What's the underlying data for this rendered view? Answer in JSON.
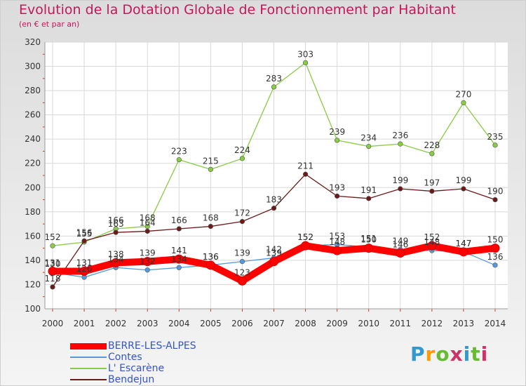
{
  "header": {
    "title": "Evolution de la Dotation Globale de Fonctionnement par Habitant",
    "subtitle": "(en € et par an)"
  },
  "logo": {
    "text": "Proxiti",
    "colors": [
      "#3399cc",
      "#ff9900",
      "#66bb33",
      "#cc3366",
      "#3399cc",
      "#66bb33",
      "#cc3366"
    ]
  },
  "chart_data": {
    "type": "line",
    "title": "Evolution de la Dotation Globale de Fonctionnement par Habitant",
    "subtitle": "(en € et par an)",
    "x": [
      "2000",
      "2001",
      "2002",
      "2003",
      "2004",
      "2005",
      "2006",
      "2007",
      "2008",
      "2009",
      "2010",
      "2011",
      "2012",
      "2013",
      "2014"
    ],
    "ylim": [
      100,
      320
    ],
    "yticks": [
      100,
      120,
      140,
      160,
      180,
      200,
      220,
      240,
      260,
      280,
      300,
      320
    ],
    "grid": true,
    "legend_position": "bottom-left",
    "series": [
      {
        "name": "BERRE-LES-ALPES",
        "color": "#ff0000",
        "emphasis": true,
        "values": [
          131,
          131,
          138,
          139,
          141,
          136,
          123,
          139,
          152,
          148,
          150,
          146,
          152,
          147,
          150
        ],
        "labels": [
          131,
          131,
          138,
          139,
          141,
          136,
          123,
          139,
          152,
          148,
          150,
          146,
          152,
          147,
          150
        ]
      },
      {
        "name": "Contes",
        "color": "#5599dd",
        "values": [
          130,
          126,
          134,
          132,
          134,
          136,
          139,
          142,
          152,
          153,
          151,
          149,
          148,
          147,
          136
        ],
        "labels": [
          130,
          126,
          134,
          132,
          134,
          136,
          139,
          142,
          152,
          153,
          151,
          149,
          148,
          147,
          136
        ]
      },
      {
        "name": "L' Escarène",
        "color": "#88cc44",
        "values": [
          152,
          155,
          166,
          168,
          223,
          215,
          224,
          283,
          303,
          239,
          234,
          236,
          228,
          270,
          235
        ],
        "labels": [
          152,
          155,
          166,
          168,
          223,
          215,
          224,
          283,
          303,
          239,
          234,
          236,
          228,
          270,
          235
        ]
      },
      {
        "name": "Bendejun",
        "color": "#6b1a1a",
        "values": [
          118,
          156,
          163,
          164,
          166,
          168,
          172,
          183,
          211,
          193,
          191,
          199,
          197,
          199,
          190
        ],
        "labels": [
          118,
          156,
          163,
          164,
          166,
          168,
          172,
          183,
          211,
          193,
          191,
          199,
          197,
          199,
          190
        ]
      }
    ]
  }
}
